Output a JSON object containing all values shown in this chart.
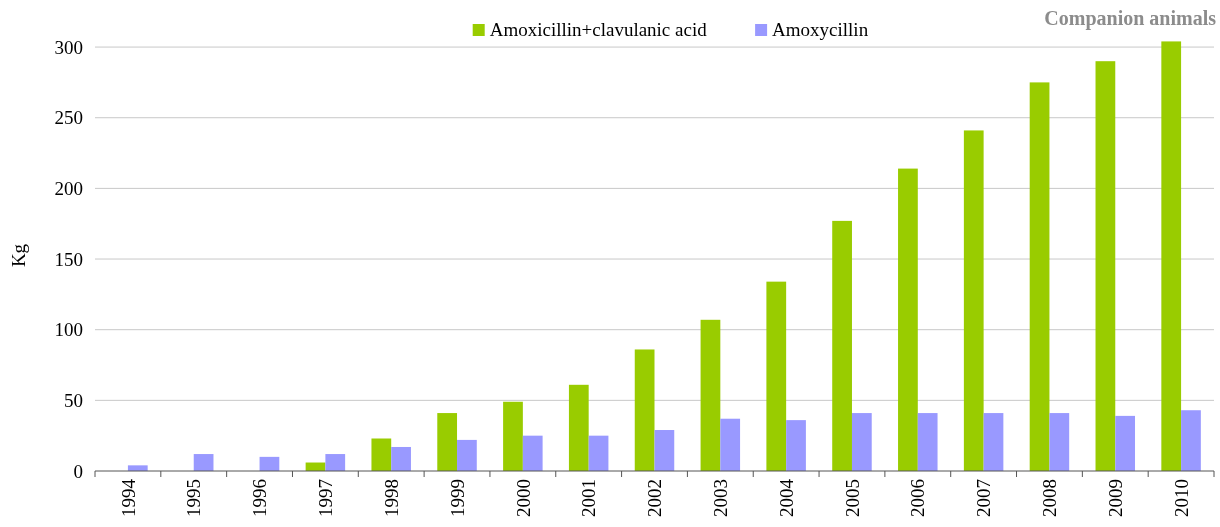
{
  "chart_data": {
    "type": "bar",
    "title": "Companion animals",
    "ylabel": "Kg",
    "categories": [
      "1994",
      "1995",
      "1996",
      "1997",
      "1998",
      "1999",
      "2000",
      "2001",
      "2002",
      "2003",
      "2004",
      "2005",
      "2006",
      "2007",
      "2008",
      "2009",
      "2010"
    ],
    "series": [
      {
        "name": "Amoxicillin+clavulanic acid",
        "color": "#99cc00",
        "values": [
          null,
          null,
          null,
          6,
          23,
          41,
          49,
          61,
          86,
          107,
          134,
          177,
          214,
          241,
          275,
          290,
          304
        ]
      },
      {
        "name": "Amoxycillin",
        "color": "#9999ff",
        "values": [
          4,
          12,
          10,
          12,
          17,
          22,
          25,
          25,
          29,
          37,
          36,
          41,
          41,
          41,
          41,
          39,
          43
        ]
      }
    ],
    "ylim": [
      0,
      305
    ],
    "yticks": [
      0,
      50,
      100,
      150,
      200,
      250,
      300
    ],
    "grid": "y",
    "legend": "top"
  }
}
